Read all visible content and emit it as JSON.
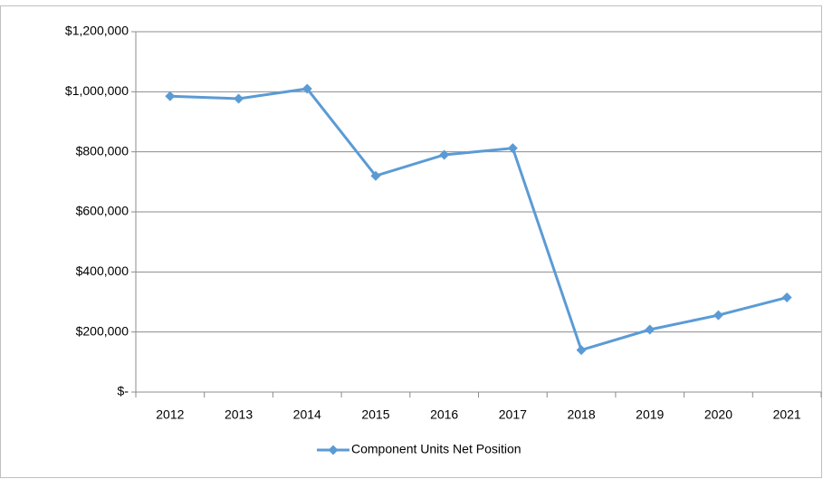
{
  "chart_data": {
    "type": "line",
    "categories": [
      "2012",
      "2013",
      "2014",
      "2015",
      "2016",
      "2017",
      "2018",
      "2019",
      "2020",
      "2021"
    ],
    "series": [
      {
        "name": "Component Units Net Position",
        "color": "#5b9bd5",
        "values": [
          985000,
          977000,
          1010000,
          720000,
          790000,
          812000,
          140000,
          208000,
          256000,
          315000
        ]
      }
    ],
    "ylim": [
      0,
      1200000
    ],
    "yticks": [
      {
        "value": 0,
        "label": "$-"
      },
      {
        "value": 200000,
        "label": "$200,000"
      },
      {
        "value": 400000,
        "label": "$400,000"
      },
      {
        "value": 600000,
        "label": "$600,000"
      },
      {
        "value": 800000,
        "label": "$800,000"
      },
      {
        "value": 1000000,
        "label": "$1,000,000"
      },
      {
        "value": 1200000,
        "label": "$1,200,000"
      }
    ],
    "grid": true,
    "legend": "bottom"
  }
}
